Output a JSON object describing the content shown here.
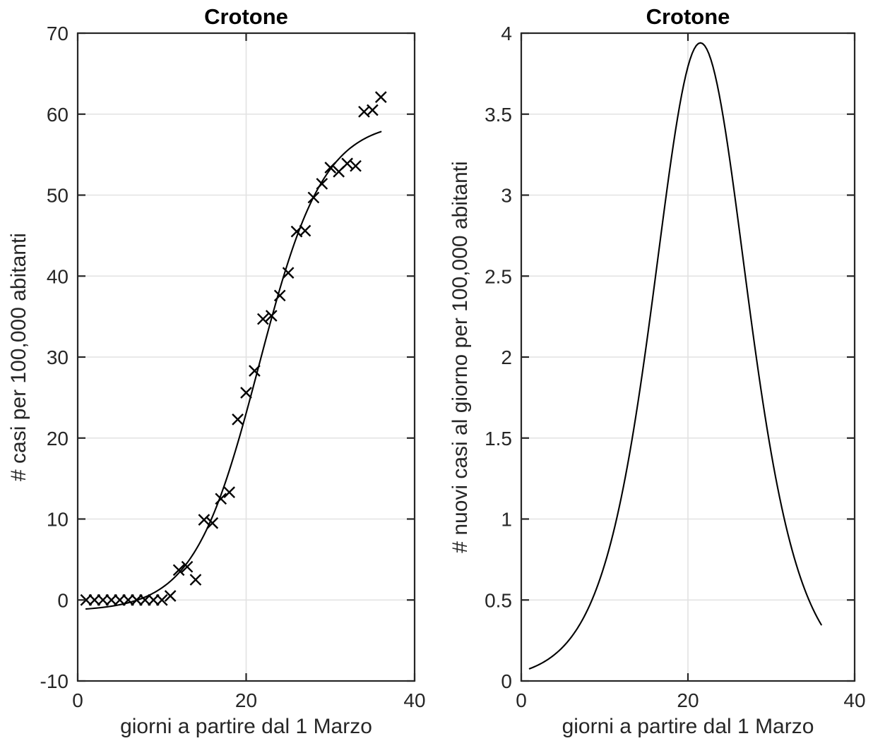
{
  "figure": {
    "background": "#ffffff",
    "axis_color": "#262626",
    "grid_color": "#e2e2e2",
    "data_color": "#000000",
    "tick_font_px": 28
  },
  "chart_data": [
    {
      "type": "scatter",
      "title": "Crotone",
      "xlabel": "giorni a partire dal 1 Marzo",
      "ylabel": "# casi per 100,000 abitanti",
      "xlim": [
        0,
        40
      ],
      "ylim": [
        -10,
        70
      ],
      "xticks": [
        0,
        20,
        40
      ],
      "yticks": [
        -10,
        0,
        10,
        20,
        30,
        40,
        50,
        60,
        70
      ],
      "grid": true,
      "marker": "x",
      "x": [
        1,
        2,
        3,
        4,
        5,
        6,
        7,
        8,
        9,
        10,
        11,
        12,
        13,
        14,
        15,
        16,
        17,
        18,
        19,
        20,
        21,
        22,
        23,
        24,
        25,
        26,
        27,
        28,
        29,
        30,
        31,
        32,
        33,
        34,
        35,
        36
      ],
      "y": [
        0,
        0,
        0,
        0,
        0,
        0,
        0,
        0,
        0,
        0,
        0.5,
        3.7,
        4.1,
        2.5,
        9.9,
        9.5,
        12.5,
        13.3,
        22.3,
        25.6,
        28.3,
        34.7,
        35.1,
        37.6,
        40.4,
        45.5,
        45.6,
        49.7,
        51.4,
        53.4,
        52.9,
        53.9,
        53.6,
        60.3,
        60.5,
        62.1
      ],
      "fit_curve": {
        "model": "logistic",
        "formula": "y(t) = -1.4 + 60.6/(1 + exp(-0.26*(t - 21.5)))",
        "offset": -1.4,
        "L": 60.6,
        "k": 0.26,
        "t0": 21.5,
        "t_start": 1,
        "t_end": 36
      }
    },
    {
      "type": "line",
      "title": "Crotone",
      "xlabel": "giorni a partire dal 1 Marzo",
      "ylabel": "# nuovi casi al giorno per 100,000 abitanti",
      "xlim": [
        0,
        40
      ],
      "ylim": [
        0,
        4
      ],
      "xticks": [
        0,
        20,
        40
      ],
      "yticks": [
        0,
        0.5,
        1,
        1.5,
        2,
        2.5,
        3,
        3.5,
        4
      ],
      "grid": true,
      "curve": {
        "model": "logistic_derivative",
        "formula": "y(t) = 3.94 * sech^2(0.13*(t - 21.5))",
        "peak": 3.94,
        "k": 0.26,
        "t0": 21.5,
        "t_start": 1,
        "t_end": 36
      }
    }
  ]
}
